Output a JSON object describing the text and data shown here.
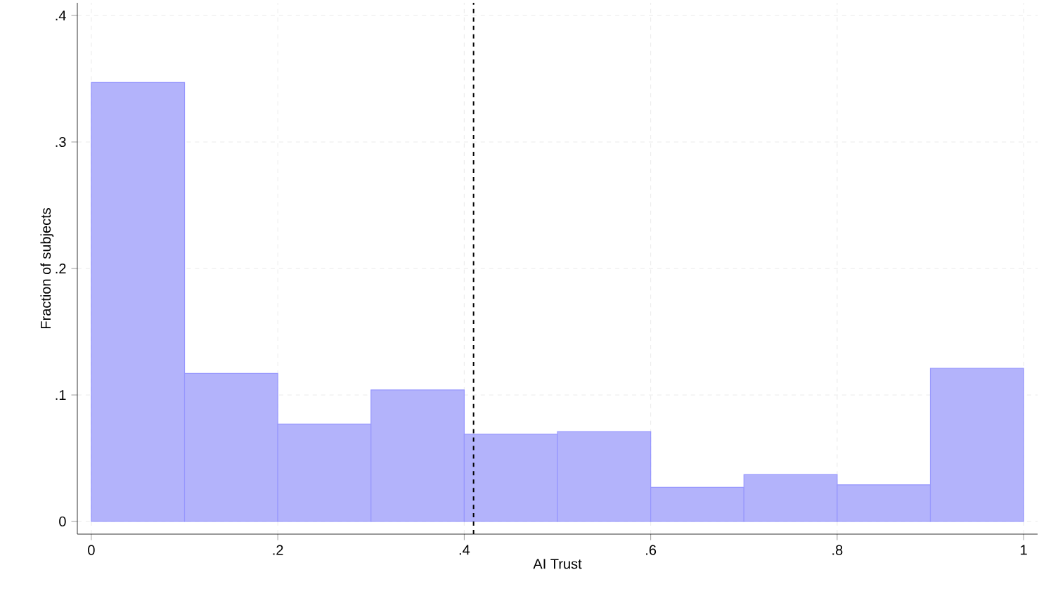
{
  "chart_data": {
    "type": "histogram",
    "xlabel": "AI Trust",
    "ylabel": "Fraction of subjects",
    "bins": [
      0,
      0.1,
      0.2,
      0.3,
      0.4,
      0.5,
      0.6,
      0.7,
      0.8,
      0.9,
      1
    ],
    "values": [
      0.347,
      0.117,
      0.077,
      0.104,
      0.069,
      0.071,
      0.027,
      0.037,
      0.029,
      0.121
    ],
    "color": "#b3b3fb",
    "xlim": [
      -0.015,
      1.015
    ],
    "ylim": [
      -0.01,
      0.41
    ],
    "xticks": [
      0,
      {
        "value": 0.2,
        "label": ".2"
      },
      {
        "value": 0.4,
        "label": ".4"
      },
      {
        "value": 0.6,
        "label": ".6"
      },
      {
        "value": 0.8,
        "label": ".8"
      },
      1
    ],
    "yticks": [
      0,
      {
        "value": 0.1,
        "label": ".1"
      },
      {
        "value": 0.2,
        "label": ".2"
      },
      {
        "value": 0.3,
        "label": ".3"
      },
      {
        "value": 0.4,
        "label": ".4"
      }
    ],
    "grid": true,
    "ref_lines": [
      {
        "axis": "x",
        "value": 0.41,
        "color": "#000000",
        "line_style": "dashed"
      }
    ]
  }
}
